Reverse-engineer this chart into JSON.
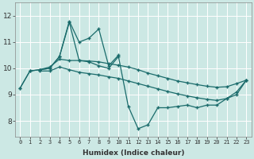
{
  "xlabel": "Humidex (Indice chaleur)",
  "bg_color": "#cce8e4",
  "grid_color_major": "#b0d8d2",
  "grid_color_minor": "#ffffff",
  "line_color": "#1a6b6b",
  "xlim": [
    -0.5,
    23.5
  ],
  "ylim": [
    7.4,
    12.5
  ],
  "xticks": [
    0,
    1,
    2,
    3,
    4,
    5,
    6,
    7,
    8,
    9,
    10,
    11,
    12,
    13,
    14,
    15,
    16,
    17,
    18,
    19,
    20,
    21,
    22,
    23
  ],
  "yticks": [
    8,
    9,
    10,
    11,
    12
  ],
  "series": [
    {
      "x": [
        0,
        1,
        2,
        3,
        4,
        5,
        6,
        7,
        8,
        9,
        10
      ],
      "y": [
        9.25,
        9.9,
        9.95,
        10.0,
        10.45,
        11.8,
        11.0,
        11.15,
        11.5,
        10.1,
        10.5
      ]
    },
    {
      "x": [
        0,
        1,
        2,
        3,
        4,
        5,
        6,
        7,
        8,
        9,
        10,
        11,
        12,
        13,
        14,
        15,
        16,
        17,
        18,
        19,
        20,
        21,
        22,
        23
      ],
      "y": [
        9.25,
        9.9,
        9.95,
        10.0,
        10.45,
        11.75,
        10.3,
        10.25,
        10.1,
        10.0,
        10.45,
        8.55,
        7.7,
        7.85,
        8.5,
        8.5,
        8.55,
        8.6,
        8.5,
        8.6,
        8.6,
        8.85,
        9.0,
        9.55
      ]
    },
    {
      "x": [
        2,
        3,
        4,
        5,
        6,
        7,
        8,
        9,
        10,
        11,
        12,
        13,
        14,
        15,
        16,
        17,
        18,
        19,
        20,
        21,
        22,
        23
      ],
      "y": [
        9.95,
        10.05,
        10.35,
        10.3,
        10.3,
        10.28,
        10.25,
        10.18,
        10.12,
        10.05,
        9.95,
        9.82,
        9.72,
        9.62,
        9.52,
        9.45,
        9.38,
        9.32,
        9.28,
        9.3,
        9.42,
        9.55
      ]
    },
    {
      "x": [
        2,
        3,
        4,
        5,
        6,
        7,
        8,
        9,
        10,
        11,
        12,
        13,
        14,
        15,
        16,
        17,
        18,
        19,
        20,
        21,
        22,
        23
      ],
      "y": [
        9.9,
        9.9,
        10.05,
        9.95,
        9.85,
        9.8,
        9.75,
        9.68,
        9.62,
        9.52,
        9.42,
        9.32,
        9.22,
        9.12,
        9.03,
        8.95,
        8.88,
        8.82,
        8.78,
        8.85,
        9.1,
        9.55
      ]
    }
  ]
}
